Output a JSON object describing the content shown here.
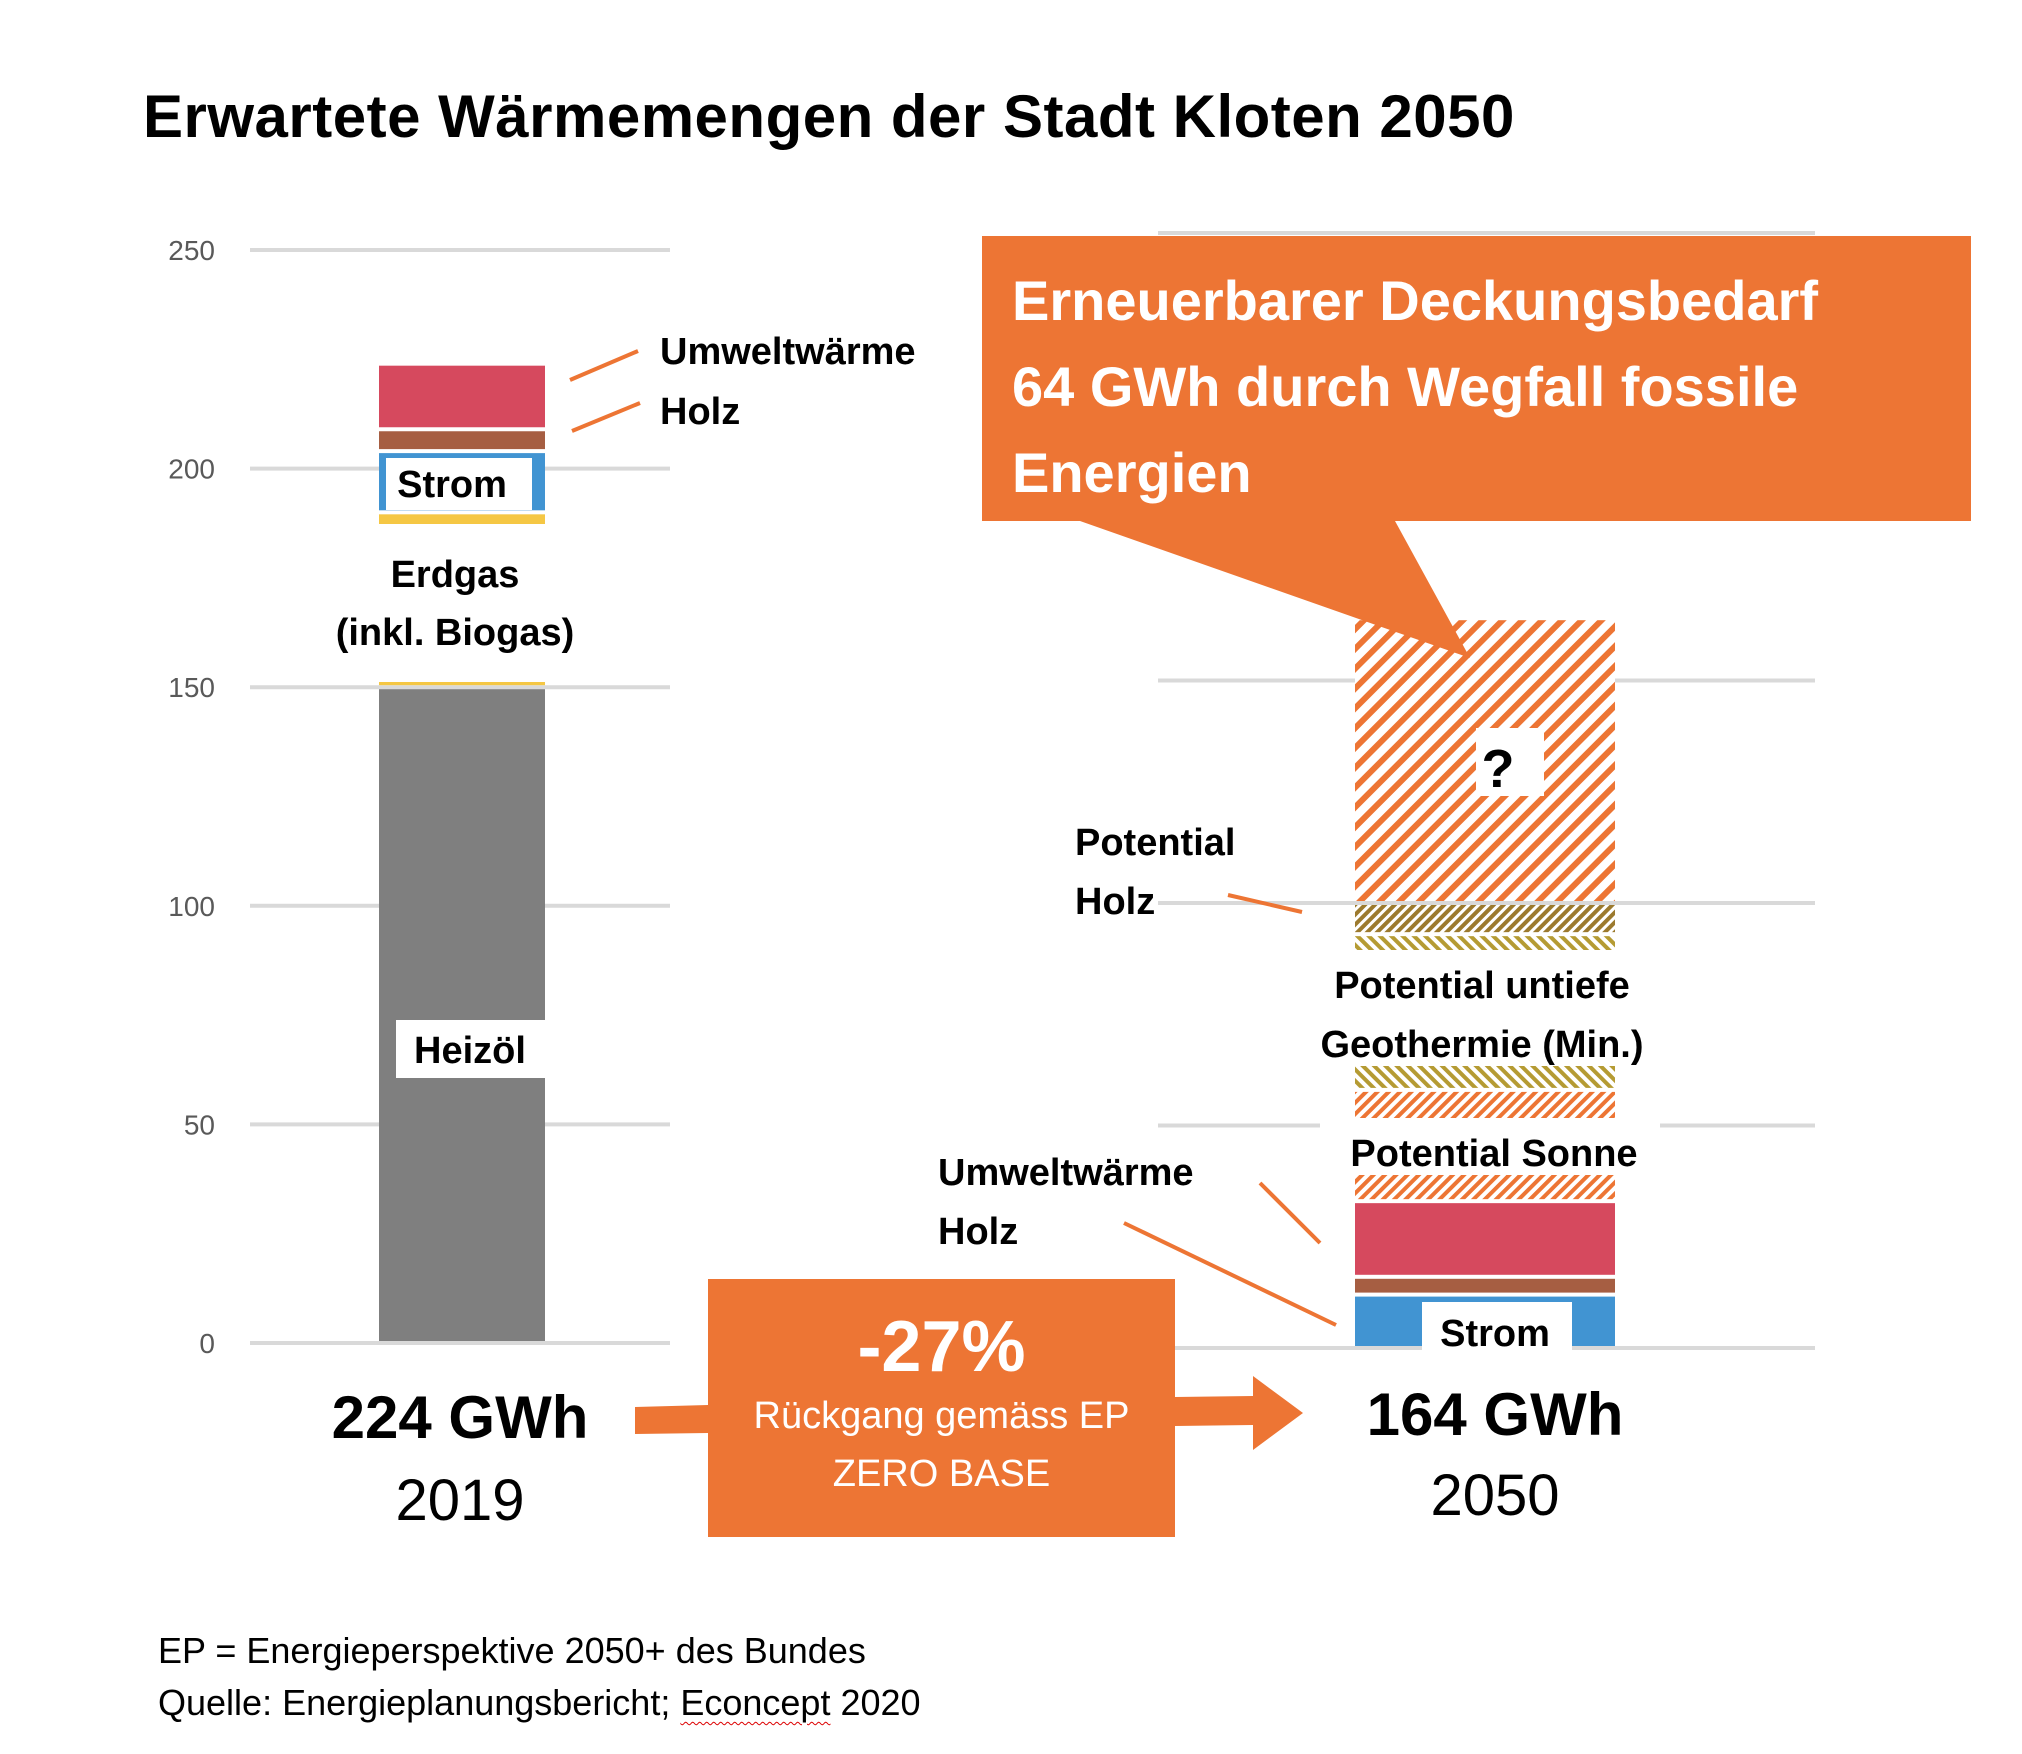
{
  "title": "Erwartete Wärmemengen der Stadt Kloten 2050",
  "colors": {
    "heizoel": "#7F7F7F",
    "erdgas": "#F5C744",
    "strom": "#4194D2",
    "holz": "#A65E42",
    "umweltwaerme": "#D6495E",
    "accent_orange": "#ED7534",
    "potential_holz_hatch": "#9C7A2E",
    "geothermie_hatch": "#B59B33",
    "sonne_hatch": "#ED7534",
    "gap_hatch": "#ED7534",
    "grid": "#D9D9D9"
  },
  "chart_data": {
    "type": "bar",
    "stacked": true,
    "title": "Erwartete Wärmemengen der Stadt Kloten 2050",
    "xlabel": "",
    "ylabel": "",
    "ylim": [
      0,
      250
    ],
    "yticks": [
      0,
      50,
      100,
      150,
      200,
      250
    ],
    "grid": true,
    "categories": [
      "2019",
      "2050"
    ],
    "unit": "GWh",
    "bars": [
      {
        "category": "2019",
        "total_label": "224 GWh",
        "year_label": "2019",
        "segments": [
          {
            "name": "Heizöl",
            "value": 150,
            "color_key": "heizoel",
            "pattern": "solid",
            "label": "Heizöl"
          },
          {
            "name": "Erdgas (inkl. Biogas)",
            "value": 40,
            "color_key": "erdgas",
            "pattern": "solid",
            "label": "Erdgas\n(inkl. Biogas)"
          },
          {
            "name": "Strom",
            "value": 14,
            "color_key": "strom",
            "pattern": "solid",
            "label": "Strom"
          },
          {
            "name": "Holz",
            "value": 5,
            "color_key": "holz",
            "pattern": "solid",
            "label": "Holz"
          },
          {
            "name": "Umweltwärme",
            "value": 15,
            "color_key": "umweltwaerme",
            "pattern": "solid",
            "label": "Umweltwärme"
          }
        ]
      },
      {
        "category": "2050",
        "total_label": "164 GWh",
        "year_label": "2050",
        "segments": [
          {
            "name": "Strom",
            "value": 12,
            "color_key": "strom",
            "pattern": "solid",
            "label": "Strom"
          },
          {
            "name": "Holz",
            "value": 4,
            "color_key": "holz",
            "pattern": "solid",
            "label": "Holz"
          },
          {
            "name": "Umweltwärme",
            "value": 17,
            "color_key": "umweltwaerme",
            "pattern": "solid",
            "label": "Umweltwärme"
          },
          {
            "name": "Potential Sonne",
            "value": 25,
            "color_key": "sonne_hatch",
            "pattern": "hatch",
            "label": "Potential Sonne"
          },
          {
            "name": "Potential untiefe Geothermie (Min.)",
            "value": 35,
            "color_key": "geothermie_hatch",
            "pattern": "hatch",
            "label": "Potential untiefe\nGeothermie (Min.)"
          },
          {
            "name": "Potential Holz",
            "value": 7,
            "color_key": "potential_holz_hatch",
            "pattern": "hatch",
            "label": "Potential\nHolz"
          },
          {
            "name": "Ungedeckt",
            "value": 64,
            "color_key": "gap_hatch",
            "pattern": "hatch",
            "label": "?"
          }
        ]
      }
    ],
    "annotations": [
      "Erneuerbarer Deckungsbedarf 64 GWh durch Wegfall fossile Energien",
      "-27% Rückgang gemäss EP ZERO BASE"
    ]
  },
  "labels": {
    "left_umweltwaerme": "Umweltwärme",
    "left_holz": "Holz",
    "left_strom": "Strom",
    "left_erdgas_1": "Erdgas",
    "left_erdgas_2": "(inkl. Biogas)",
    "left_heizoel": "Heizöl",
    "right_potential_holz_1": "Potential",
    "right_potential_holz_2": "Holz",
    "right_geo_1": "Potential untiefe",
    "right_geo_2": "Geothermie (Min.)",
    "right_sonne": "Potential Sonne",
    "right_umweltwaerme": "Umweltwärme",
    "right_holz": "Holz",
    "right_strom": "Strom",
    "question": "?"
  },
  "callout": {
    "line1": "Erneuerbarer Deckungsbedarf",
    "line2": "64 GWh durch Wegfall fossile",
    "line3": "Energien"
  },
  "change": {
    "percent": "-27%",
    "line1": "Rückgang gemäss EP",
    "line2": "ZERO BASE"
  },
  "totals": {
    "left_total": "224 GWh",
    "left_year": "2019",
    "right_total": "164 GWh",
    "right_year": "2050"
  },
  "footer": {
    "line1": "EP = Energieperspektive 2050+ des Bundes",
    "line2_prefix": "Quelle:  Energieplanungsbericht; ",
    "line2_misspelled": "Econcept",
    "line2_suffix": " 2020"
  }
}
